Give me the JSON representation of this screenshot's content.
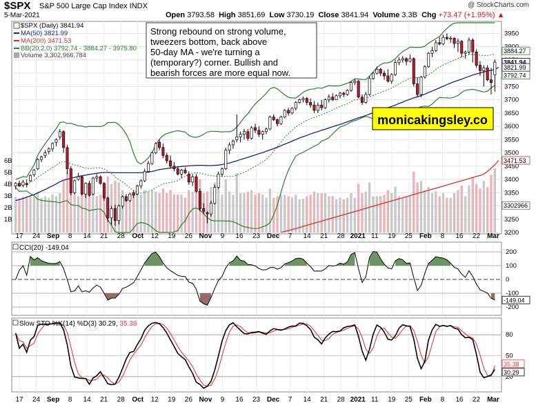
{
  "header": {
    "symbol": "$SPX",
    "name": "S&P 500 Large Cap Index INDX",
    "date": "5-Mar-2021",
    "watermark": "@ StockCharts.com",
    "open_label": "Open",
    "open": "3793.58",
    "high_label": "High",
    "high": "3851.69",
    "low_label": "Low",
    "low": "3730.19",
    "close_label": "Close",
    "close": "3841.94",
    "volume_label": "Volume",
    "volume": "3.3B",
    "chg_label": "Chg",
    "chg": "+73.47 (+1.95%)",
    "chg_arrow": "▲"
  },
  "legend": {
    "price": "$SPX (Daily) 3841.94",
    "ma50": "MA(50) 3821.99",
    "ma200": "MA(200) 3471.53",
    "bb": "BB(20,2.0) 3792.74 - 3884.27 - 3975.80",
    "volume": "Volume 3,302,966,784"
  },
  "annotation": {
    "lines": [
      "Strong rebound on strong volume,",
      "tweezers bottom, back above",
      "50-day MA - we're turning a",
      "(temporary?) corner. Bullish and",
      "bearish forces are more equal now."
    ]
  },
  "brand": "monicakingsley.co",
  "price_axis_labels": [
    "3950",
    "3900",
    "3850",
    "3800",
    "3750",
    "3700",
    "3650",
    "3600",
    "3550",
    "3500",
    "3450",
    "3400",
    "3350",
    "3300",
    "3250",
    "3200"
  ],
  "price_tags": [
    "3884.27",
    "3841.94",
    "3821.99",
    "3792.74",
    "3471.53",
    "3302966"
  ],
  "volume_axis_labels": [
    "6B",
    "5B",
    "4B",
    "3B",
    "2B",
    "1B"
  ],
  "x_axis_labels": [
    "17",
    "24",
    "Sep",
    "8",
    "14",
    "21",
    "28",
    "Oct",
    "12",
    "19",
    "26",
    "Nov",
    "9",
    "16",
    "23",
    "Dec",
    "7",
    "14",
    "21",
    "28",
    "2021",
    "11",
    "19",
    "25",
    "Feb",
    "8",
    "16",
    "22",
    "Mar"
  ],
  "cci": {
    "legend": "CCI(20) -149.04",
    "axis": [
      "200",
      "100",
      "0",
      "-100",
      "-200"
    ],
    "tag": "-149.04"
  },
  "sto": {
    "legend_prefix": "Slow STO %K(14) %D(3) 30.29,",
    "legend_d": "35.38",
    "axis": [
      "80",
      "50",
      "20"
    ],
    "tags": [
      "35.38",
      "30.29"
    ]
  },
  "colors": {
    "up": "#ffffff",
    "down": "#c0182c",
    "ma50": "#1a237e",
    "ma200": "#d32f2f",
    "bb": "#2e7d32",
    "brand_bg": "#ffff00",
    "k": "#000000",
    "d": "#e53935",
    "cci_fill_pos": "#5d8a52",
    "cci_fill_neg": "#8d5a5a"
  },
  "chart_data": {
    "type": "candlestick",
    "title": "$SPX S&P 500 Large Cap Index INDX",
    "ylim": [
      3200,
      3990
    ],
    "candles": [
      {
        "o": 3375,
        "h": 3390,
        "l": 3362,
        "c": 3385
      },
      {
        "o": 3385,
        "h": 3395,
        "l": 3372,
        "c": 3375
      },
      {
        "o": 3378,
        "h": 3398,
        "l": 3370,
        "c": 3390
      },
      {
        "o": 3385,
        "h": 3400,
        "l": 3370,
        "c": 3380
      },
      {
        "o": 3395,
        "h": 3420,
        "l": 3390,
        "c": 3415
      },
      {
        "o": 3418,
        "h": 3440,
        "l": 3410,
        "c": 3435
      },
      {
        "o": 3440,
        "h": 3480,
        "l": 3435,
        "c": 3475
      },
      {
        "o": 3475,
        "h": 3490,
        "l": 3465,
        "c": 3485
      },
      {
        "o": 3490,
        "h": 3510,
        "l": 3480,
        "c": 3500
      },
      {
        "o": 3505,
        "h": 3520,
        "l": 3495,
        "c": 3515
      },
      {
        "o": 3515,
        "h": 3540,
        "l": 3505,
        "c": 3535
      },
      {
        "o": 3540,
        "h": 3555,
        "l": 3525,
        "c": 3550
      },
      {
        "o": 3560,
        "h": 3590,
        "l": 3550,
        "c": 3580
      },
      {
        "o": 3580,
        "h": 3585,
        "l": 3500,
        "c": 3520
      },
      {
        "o": 3520,
        "h": 3530,
        "l": 3420,
        "c": 3440
      },
      {
        "o": 3440,
        "h": 3450,
        "l": 3340,
        "c": 3350
      },
      {
        "o": 3350,
        "h": 3400,
        "l": 3345,
        "c": 3395
      },
      {
        "o": 3400,
        "h": 3425,
        "l": 3395,
        "c": 3410
      },
      {
        "o": 3410,
        "h": 3415,
        "l": 3340,
        "c": 3345
      },
      {
        "o": 3345,
        "h": 3390,
        "l": 3330,
        "c": 3385
      },
      {
        "o": 3385,
        "h": 3395,
        "l": 3335,
        "c": 3340
      },
      {
        "o": 3345,
        "h": 3410,
        "l": 3340,
        "c": 3405
      },
      {
        "o": 3405,
        "h": 3420,
        "l": 3390,
        "c": 3410
      },
      {
        "o": 3410,
        "h": 3415,
        "l": 3380,
        "c": 3385
      },
      {
        "o": 3385,
        "h": 3390,
        "l": 3320,
        "c": 3330
      },
      {
        "o": 3330,
        "h": 3335,
        "l": 3240,
        "c": 3255
      },
      {
        "o": 3255,
        "h": 3300,
        "l": 3230,
        "c": 3290
      },
      {
        "o": 3290,
        "h": 3305,
        "l": 3225,
        "c": 3245
      },
      {
        "o": 3245,
        "h": 3305,
        "l": 3230,
        "c": 3300
      },
      {
        "o": 3300,
        "h": 3340,
        "l": 3290,
        "c": 3335
      },
      {
        "o": 3335,
        "h": 3345,
        "l": 3315,
        "c": 3320
      },
      {
        "o": 3320,
        "h": 3350,
        "l": 3315,
        "c": 3345
      },
      {
        "o": 3350,
        "h": 3360,
        "l": 3330,
        "c": 3340
      },
      {
        "o": 3345,
        "h": 3380,
        "l": 3340,
        "c": 3375
      },
      {
        "o": 3375,
        "h": 3400,
        "l": 3365,
        "c": 3395
      },
      {
        "o": 3395,
        "h": 3440,
        "l": 3390,
        "c": 3430
      },
      {
        "o": 3430,
        "h": 3470,
        "l": 3425,
        "c": 3460
      },
      {
        "o": 3460,
        "h": 3505,
        "l": 3455,
        "c": 3500
      },
      {
        "o": 3500,
        "h": 3540,
        "l": 3495,
        "c": 3535
      },
      {
        "o": 3540,
        "h": 3550,
        "l": 3510,
        "c": 3520
      },
      {
        "o": 3520,
        "h": 3535,
        "l": 3480,
        "c": 3490
      },
      {
        "o": 3490,
        "h": 3500,
        "l": 3460,
        "c": 3470
      },
      {
        "o": 3470,
        "h": 3490,
        "l": 3440,
        "c": 3450
      },
      {
        "o": 3450,
        "h": 3465,
        "l": 3430,
        "c": 3440
      },
      {
        "o": 3440,
        "h": 3450,
        "l": 3415,
        "c": 3420
      },
      {
        "o": 3420,
        "h": 3440,
        "l": 3405,
        "c": 3435
      },
      {
        "o": 3435,
        "h": 3445,
        "l": 3420,
        "c": 3425
      },
      {
        "o": 3420,
        "h": 3430,
        "l": 3380,
        "c": 3390
      },
      {
        "o": 3390,
        "h": 3420,
        "l": 3375,
        "c": 3410
      },
      {
        "o": 3410,
        "h": 3420,
        "l": 3350,
        "c": 3355
      },
      {
        "o": 3355,
        "h": 3365,
        "l": 3280,
        "c": 3290
      },
      {
        "o": 3290,
        "h": 3310,
        "l": 3270,
        "c": 3280
      },
      {
        "o": 3275,
        "h": 3280,
        "l": 3235,
        "c": 3270
      },
      {
        "o": 3270,
        "h": 3320,
        "l": 3260,
        "c": 3310
      },
      {
        "o": 3310,
        "h": 3380,
        "l": 3305,
        "c": 3370
      },
      {
        "o": 3370,
        "h": 3430,
        "l": 3365,
        "c": 3420
      },
      {
        "o": 3420,
        "h": 3445,
        "l": 3410,
        "c": 3440
      },
      {
        "o": 3440,
        "h": 3520,
        "l": 3435,
        "c": 3510
      },
      {
        "o": 3510,
        "h": 3540,
        "l": 3495,
        "c": 3530
      },
      {
        "o": 3530,
        "h": 3550,
        "l": 3515,
        "c": 3545
      },
      {
        "o": 3550,
        "h": 3645,
        "l": 3540,
        "c": 3560
      },
      {
        "o": 3560,
        "h": 3580,
        "l": 3540,
        "c": 3570
      },
      {
        "o": 3570,
        "h": 3590,
        "l": 3550,
        "c": 3580
      },
      {
        "o": 3580,
        "h": 3590,
        "l": 3545,
        "c": 3555
      },
      {
        "o": 3555,
        "h": 3600,
        "l": 3550,
        "c": 3595
      },
      {
        "o": 3595,
        "h": 3610,
        "l": 3575,
        "c": 3585
      },
      {
        "o": 3585,
        "h": 3600,
        "l": 3560,
        "c": 3570
      },
      {
        "o": 3570,
        "h": 3585,
        "l": 3550,
        "c": 3580
      },
      {
        "o": 3580,
        "h": 3595,
        "l": 3570,
        "c": 3590
      },
      {
        "o": 3590,
        "h": 3640,
        "l": 3585,
        "c": 3635
      },
      {
        "o": 3635,
        "h": 3645,
        "l": 3620,
        "c": 3625
      },
      {
        "o": 3625,
        "h": 3630,
        "l": 3600,
        "c": 3610
      },
      {
        "o": 3610,
        "h": 3640,
        "l": 3605,
        "c": 3635
      },
      {
        "o": 3635,
        "h": 3665,
        "l": 3630,
        "c": 3660
      },
      {
        "o": 3660,
        "h": 3670,
        "l": 3640,
        "c": 3650
      },
      {
        "o": 3650,
        "h": 3672,
        "l": 3645,
        "c": 3668
      },
      {
        "o": 3668,
        "h": 3695,
        "l": 3660,
        "c": 3690
      },
      {
        "o": 3690,
        "h": 3705,
        "l": 3685,
        "c": 3700
      },
      {
        "o": 3700,
        "h": 3712,
        "l": 3690,
        "c": 3705
      },
      {
        "o": 3705,
        "h": 3710,
        "l": 3680,
        "c": 3690
      },
      {
        "o": 3690,
        "h": 3705,
        "l": 3670,
        "c": 3680
      },
      {
        "o": 3680,
        "h": 3695,
        "l": 3650,
        "c": 3660
      },
      {
        "o": 3660,
        "h": 3690,
        "l": 3650,
        "c": 3680
      },
      {
        "o": 3680,
        "h": 3700,
        "l": 3660,
        "c": 3670
      },
      {
        "o": 3670,
        "h": 3705,
        "l": 3665,
        "c": 3700
      },
      {
        "o": 3700,
        "h": 3720,
        "l": 3690,
        "c": 3710
      },
      {
        "o": 3710,
        "h": 3725,
        "l": 3695,
        "c": 3700
      },
      {
        "o": 3700,
        "h": 3720,
        "l": 3700,
        "c": 3715
      },
      {
        "o": 3715,
        "h": 3730,
        "l": 3705,
        "c": 3725
      },
      {
        "o": 3725,
        "h": 3730,
        "l": 3710,
        "c": 3720
      },
      {
        "o": 3720,
        "h": 3740,
        "l": 3715,
        "c": 3735
      },
      {
        "o": 3735,
        "h": 3770,
        "l": 3730,
        "c": 3765
      },
      {
        "o": 3765,
        "h": 3780,
        "l": 3755,
        "c": 3770
      },
      {
        "o": 3770,
        "h": 3775,
        "l": 3705,
        "c": 3710
      },
      {
        "o": 3710,
        "h": 3720,
        "l": 3680,
        "c": 3690
      },
      {
        "o": 3690,
        "h": 3730,
        "l": 3685,
        "c": 3720
      },
      {
        "o": 3720,
        "h": 3790,
        "l": 3715,
        "c": 3780
      },
      {
        "o": 3780,
        "h": 3805,
        "l": 3775,
        "c": 3800
      },
      {
        "o": 3800,
        "h": 3825,
        "l": 3795,
        "c": 3815
      },
      {
        "o": 3815,
        "h": 3820,
        "l": 3790,
        "c": 3800
      },
      {
        "o": 3800,
        "h": 3810,
        "l": 3775,
        "c": 3790
      },
      {
        "o": 3790,
        "h": 3815,
        "l": 3765,
        "c": 3770
      },
      {
        "o": 3770,
        "h": 3800,
        "l": 3760,
        "c": 3795
      },
      {
        "o": 3795,
        "h": 3850,
        "l": 3790,
        "c": 3840
      },
      {
        "o": 3840,
        "h": 3860,
        "l": 3830,
        "c": 3850
      },
      {
        "o": 3850,
        "h": 3865,
        "l": 3840,
        "c": 3855
      },
      {
        "o": 3855,
        "h": 3860,
        "l": 3830,
        "c": 3845
      },
      {
        "o": 3845,
        "h": 3870,
        "l": 3840,
        "c": 3855
      },
      {
        "o": 3855,
        "h": 3860,
        "l": 3750,
        "c": 3760
      },
      {
        "o": 3760,
        "h": 3785,
        "l": 3710,
        "c": 3720
      },
      {
        "o": 3720,
        "h": 3790,
        "l": 3710,
        "c": 3785
      },
      {
        "o": 3785,
        "h": 3830,
        "l": 3780,
        "c": 3825
      },
      {
        "o": 3825,
        "h": 3880,
        "l": 3820,
        "c": 3875
      },
      {
        "o": 3875,
        "h": 3900,
        "l": 3860,
        "c": 3885
      },
      {
        "o": 3885,
        "h": 3925,
        "l": 3880,
        "c": 3915
      },
      {
        "o": 3915,
        "h": 3935,
        "l": 3905,
        "c": 3910
      },
      {
        "o": 3910,
        "h": 3945,
        "l": 3905,
        "c": 3935
      },
      {
        "o": 3935,
        "h": 3950,
        "l": 3925,
        "c": 3930
      },
      {
        "o": 3930,
        "h": 3940,
        "l": 3915,
        "c": 3932
      },
      {
        "o": 3932,
        "h": 3935,
        "l": 3895,
        "c": 3912
      },
      {
        "o": 3912,
        "h": 3930,
        "l": 3880,
        "c": 3920
      },
      {
        "o": 3920,
        "h": 3925,
        "l": 3860,
        "c": 3875
      },
      {
        "o": 3875,
        "h": 3885,
        "l": 3855,
        "c": 3880
      },
      {
        "o": 3880,
        "h": 3935,
        "l": 3870,
        "c": 3925
      },
      {
        "o": 3925,
        "h": 3932,
        "l": 3840,
        "c": 3880
      },
      {
        "o": 3880,
        "h": 3890,
        "l": 3820,
        "c": 3830
      },
      {
        "o": 3830,
        "h": 3845,
        "l": 3790,
        "c": 3810
      },
      {
        "o": 3810,
        "h": 3830,
        "l": 3750,
        "c": 3820
      },
      {
        "o": 3820,
        "h": 3830,
        "l": 3770,
        "c": 3775
      },
      {
        "o": 3775,
        "h": 3820,
        "l": 3720,
        "c": 3765
      },
      {
        "o": 3793.58,
        "h": 3851.69,
        "l": 3730.19,
        "c": 3841.94
      }
    ],
    "ma50": [
      3320,
      3324,
      3328,
      3333,
      3338,
      3343,
      3349,
      3356,
      3362,
      3369,
      3376,
      3383,
      3391,
      3397,
      3401,
      3404,
      3408,
      3411,
      3414,
      3416,
      3419,
      3421,
      3423,
      3425,
      3426,
      3426,
      3426,
      3425,
      3425,
      3425,
      3425,
      3425,
      3425,
      3425,
      3425,
      3426,
      3428,
      3430,
      3433,
      3437,
      3439,
      3441,
      3443,
      3445,
      3447,
      3449,
      3450,
      3451,
      3452,
      3453,
      3453,
      3453,
      3452,
      3452,
      3453,
      3454,
      3456,
      3459,
      3462,
      3466,
      3470,
      3475,
      3479,
      3483,
      3488,
      3492,
      3497,
      3501,
      3506,
      3511,
      3516,
      3521,
      3527,
      3533,
      3538,
      3544,
      3550,
      3556,
      3561,
      3566,
      3571,
      3576,
      3580,
      3585,
      3589,
      3594,
      3598,
      3603,
      3607,
      3612,
      3617,
      3622,
      3627,
      3632,
      3636,
      3641,
      3646,
      3651,
      3656,
      3660,
      3665,
      3670,
      3675,
      3680,
      3686,
      3691,
      3697,
      3702,
      3707,
      3711,
      3716,
      3721,
      3727,
      3733,
      3739,
      3745,
      3751,
      3757,
      3763,
      3768,
      3773,
      3778,
      3783,
      3788,
      3793,
      3797,
      3801,
      3805,
      3808,
      3811,
      3814,
      3822
    ],
    "ma200": [
      2985,
      2988,
      2991,
      2994,
      2997,
      3000,
      3003,
      3006,
      3009,
      3012,
      3015,
      3018,
      3021,
      3024,
      3027,
      3030,
      3033,
      3036,
      3039,
      3042,
      3045,
      3048,
      3051,
      3054,
      3057,
      3060,
      3063,
      3066,
      3069,
      3072,
      3075,
      3078,
      3081,
      3084,
      3087,
      3090,
      3093,
      3096,
      3099,
      3102,
      3105,
      3108,
      3111,
      3114,
      3117,
      3120,
      3123,
      3126,
      3129,
      3132,
      3135,
      3138,
      3141,
      3144,
      3147,
      3150,
      3153,
      3156,
      3159,
      3162,
      3165,
      3168,
      3171,
      3174,
      3177,
      3180,
      3183,
      3186,
      3189,
      3192,
      3195,
      3198,
      3201,
      3204,
      3207,
      3211,
      3215,
      3219,
      3223,
      3227,
      3231,
      3235,
      3239,
      3243,
      3247,
      3251,
      3255,
      3259,
      3263,
      3267,
      3271,
      3275,
      3279,
      3283,
      3287,
      3291,
      3295,
      3299,
      3303,
      3307,
      3311,
      3315,
      3319,
      3323,
      3327,
      3331,
      3335,
      3339,
      3343,
      3347,
      3351,
      3355,
      3359,
      3363,
      3367,
      3371,
      3375,
      3379,
      3383,
      3387,
      3391,
      3395,
      3399,
      3403,
      3407,
      3411,
      3415,
      3420,
      3430,
      3442,
      3455,
      3471.53
    ]
  }
}
